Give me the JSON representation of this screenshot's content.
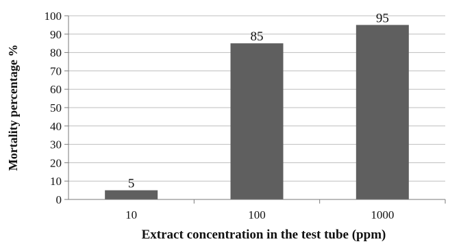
{
  "chart_data": {
    "type": "bar",
    "categories": [
      "10",
      "100",
      "1000"
    ],
    "values": [
      5,
      85,
      95
    ],
    "data_labels": [
      "5",
      "85",
      "95"
    ],
    "title": "",
    "xlabel": "Extract concentration in the test tube (ppm)",
    "ylabel": "Mortality percentage %",
    "ylim": [
      0,
      100
    ],
    "yticks": [
      "0",
      "10",
      "20",
      "30",
      "40",
      "50",
      "60",
      "70",
      "80",
      "90",
      "100"
    ],
    "grid": true,
    "legend": "none",
    "bar_color": "#5f5f5f",
    "grid_color": "#bdbdbd"
  }
}
